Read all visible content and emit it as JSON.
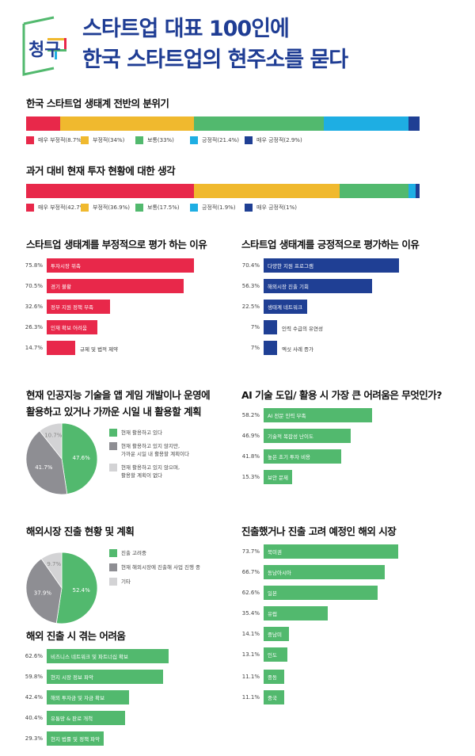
{
  "header": {
    "logo_text": "청구",
    "title_line1": "스타트업 대표 100인에",
    "title_line2": "한국 스타트업의 현주소를 묻다"
  },
  "colors": {
    "red": "#e8284a",
    "yellow": "#f0b92e",
    "green": "#52b96e",
    "cyan": "#1eaee3",
    "navy": "#1f3f94",
    "gray": "#8e8e93",
    "lightgray": "#d3d3d5",
    "title": "#1f3d94"
  },
  "chart_data": [
    {
      "id": "atmosphere",
      "type": "bar",
      "stacked": true,
      "title": "한국 스타트업 생태계 전반의 분위기",
      "categories": [
        "매우 부정적",
        "부정적",
        "보통",
        "긍정적",
        "매우 긍정적"
      ],
      "values": [
        8.7,
        34,
        33,
        21.4,
        2.9
      ],
      "legend": [
        "매우 부정적(8.7%)",
        "부정적(34%)",
        "보통(33%)",
        "긍정적(21.4%)",
        "매우 긍정적(2.9%)"
      ],
      "colors": [
        "#e8284a",
        "#f0b92e",
        "#52b96e",
        "#1eaee3",
        "#1f3f94"
      ]
    },
    {
      "id": "investment",
      "type": "bar",
      "stacked": true,
      "title": "과거 대비 현재 투자 현황에 대한 생각",
      "categories": [
        "매우 부정적",
        "부정적",
        "보통",
        "긍정적",
        "매우 긍정적"
      ],
      "values": [
        42.7,
        36.9,
        17.5,
        1.9,
        1
      ],
      "legend": [
        "매우 부정적(42.7%)",
        "부정적(36.9%)",
        "보통(17.5%)",
        "긍정적(1.9%)",
        "매우 긍정적(1%)"
      ],
      "colors": [
        "#e8284a",
        "#f0b92e",
        "#52b96e",
        "#1eaee3",
        "#1f3f94"
      ]
    },
    {
      "id": "negative",
      "type": "bar",
      "orientation": "horizontal",
      "title": "스타트업 생태계를 부정적으로 평가 하는 이유",
      "categories": [
        "투자시장 위축",
        "경기 불황",
        "정부 지원 정책 부족",
        "인재 확보 어려움",
        "규제 및 법적 제약"
      ],
      "values": [
        75.8,
        70.5,
        32.6,
        26.3,
        14.7
      ],
      "labels": [
        "75.8%",
        "70.5%",
        "32.6%",
        "26.3%",
        "14.7%"
      ],
      "color": "#e8284a"
    },
    {
      "id": "positive",
      "type": "bar",
      "orientation": "horizontal",
      "title": "스타트업 생태계를 긍정적으로 평가하는 이유",
      "categories": [
        "다양한 지원 프로그램",
        "해외시장 진출 기회",
        "생태계 네트워크",
        "인력 수급의 유연성",
        "엑싯 사례 증가"
      ],
      "values": [
        70.4,
        56.3,
        22.5,
        7,
        7
      ],
      "labels": [
        "70.4%",
        "56.3%",
        "22.5%",
        "7%",
        "7%"
      ],
      "color": "#1f3f94"
    },
    {
      "id": "ai_usage",
      "type": "pie",
      "title_line1": "현재 인공지능 기술을 앱 게임 개발이나 운영에",
      "title_line2": "활용하고 있거나 가까운 시일 내 활용할 계획",
      "categories": [
        "현재 활용하고 있다",
        "현재 활용하고 있지 않지만, 가까운 시일 내 활용할 계획이다",
        "현재 활용하고 있지 않으며, 활용할 계획이 없다"
      ],
      "legend": [
        [
          "현재 활용하고 있다"
        ],
        [
          "현재 활용하고 있지 않지만,",
          "가까운 시일 내 활용할 계획이다"
        ],
        [
          "현재 활용하고 있지 않으며,",
          "활용할 계획이 없다"
        ]
      ],
      "values": [
        47.6,
        41.7,
        10.7
      ],
      "labels": [
        "47.6%",
        "41.7%",
        "10.7%"
      ],
      "colors": [
        "#52b96e",
        "#8e8e93",
        "#d3d3d5"
      ]
    },
    {
      "id": "ai_difficulty",
      "type": "bar",
      "orientation": "horizontal",
      "title": "AI 기술 도입/ 활용 시 가장 큰 어려움은 무엇인가?",
      "categories": [
        "AI 전문 인력 부족",
        "기술적 복잡성 난이도",
        "높은 초기 투자 비용",
        "보안 문제"
      ],
      "values": [
        58.2,
        46.9,
        41.8,
        15.3
      ],
      "labels": [
        "58.2%",
        "46.9%",
        "41.8%",
        "15.3%"
      ],
      "color": "#52b96e"
    },
    {
      "id": "overseas_status",
      "type": "pie",
      "title": "해외시장 진출 현황 및 계획",
      "categories": [
        "진출 고려중",
        "현재 해외시장에 진출해 사업 진행 중",
        "기타"
      ],
      "legend": [
        [
          "진출 고려중"
        ],
        [
          "현재 해외시장에 진출해 사업 진행 중"
        ],
        [
          "기타"
        ]
      ],
      "values": [
        52.4,
        37.9,
        9.7
      ],
      "labels": [
        "52.4%",
        "37.9%",
        "9.7%"
      ],
      "colors": [
        "#52b96e",
        "#8e8e93",
        "#d3d3d5"
      ]
    },
    {
      "id": "markets",
      "type": "bar",
      "orientation": "horizontal",
      "title": "진출했거나 진출 고려 예정인 해외 시장",
      "categories": [
        "북미권",
        "동남아시아",
        "일본",
        "유럽",
        "중남미",
        "인도",
        "중동",
        "중국"
      ],
      "values": [
        73.7,
        66.7,
        62.6,
        35.4,
        14.1,
        13.1,
        11.1,
        11.1
      ],
      "labels": [
        "73.7%",
        "66.7%",
        "62.6%",
        "35.4%",
        "14.1%",
        "13.1%",
        "11.1%",
        "11.1%"
      ],
      "color": "#52b96e"
    },
    {
      "id": "overseas_difficulty",
      "type": "bar",
      "orientation": "horizontal",
      "title": "해외 진출 시 겪는 어려움",
      "categories": [
        "비즈니스 네트워크 및 파트너십 확보",
        "현지 시장 정보 파악",
        "해외 투자금 및 자금 확보",
        "유통망 & 판로 개척",
        "현지 법률 및 정책 파악"
      ],
      "values": [
        62.6,
        59.8,
        42.4,
        40.4,
        29.3
      ],
      "labels": [
        "62.6%",
        "59.8%",
        "42.4%",
        "40.4%",
        "29.3%"
      ],
      "color": "#52b96e"
    }
  ]
}
